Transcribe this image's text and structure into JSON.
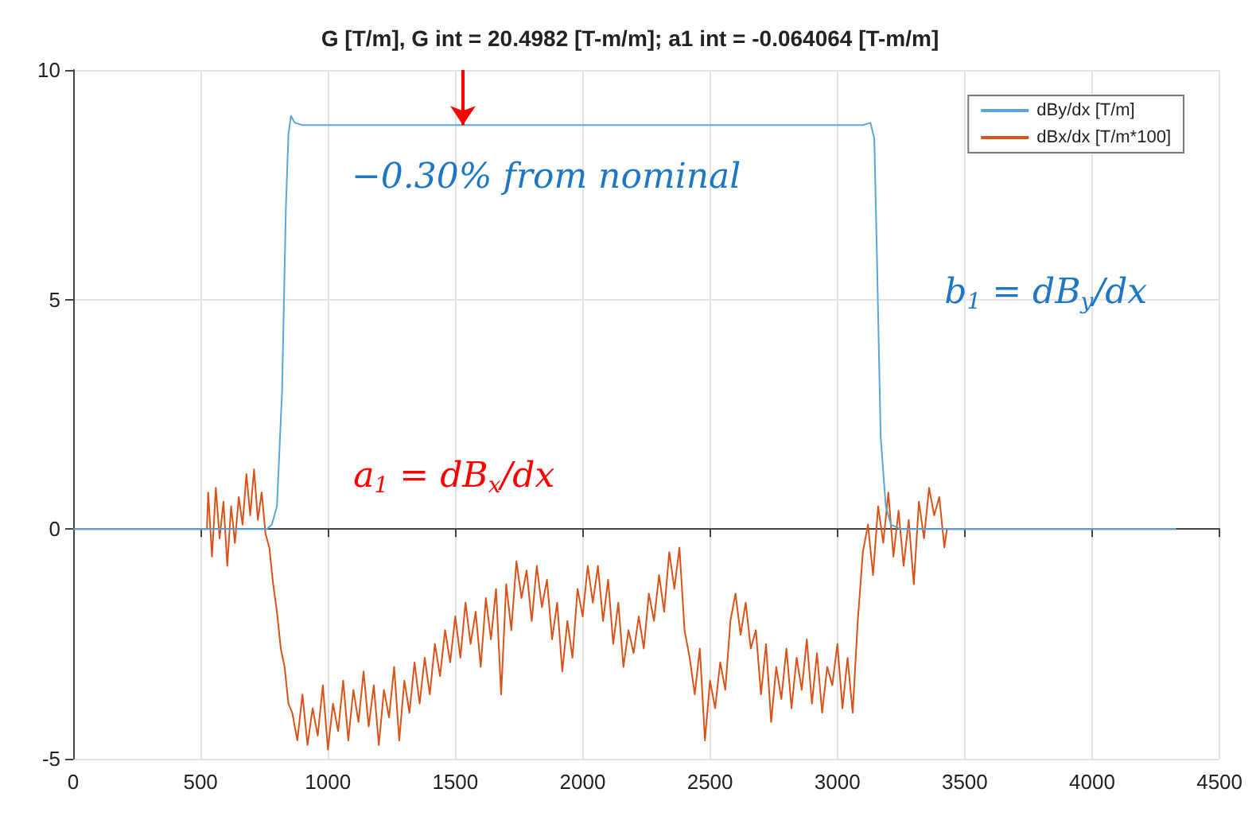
{
  "chart_data": {
    "type": "line",
    "title": "G [T/m], G int = 20.4982 [T-m/m]; a1 int = -0.064064 [T-m/m]",
    "xlim": [
      0,
      4500
    ],
    "xticks": [
      0,
      500,
      1000,
      1500,
      2000,
      2500,
      3000,
      3500,
      4000,
      4500
    ],
    "ylim": [
      -5,
      10
    ],
    "yticks": [
      -5,
      0,
      5,
      10
    ],
    "grid": true,
    "legend": "top right",
    "marker": "none",
    "line_style": "solid",
    "annotations": [
      {
        "text": "−0.30% from nominal",
        "x": 1530,
        "y": 8.8
      },
      "b$_{1}$ = dB$_{y}$/dx",
      "a$_{1}$ = dB$_{x}$/dx"
    ],
    "series": [
      {
        "name": "dBy/dx [T/m]",
        "color": "#5aa6dc",
        "x": [
          0,
          760,
          780,
          800,
          820,
          835,
          845,
          855,
          870,
          900,
          1500,
          2000,
          2500,
          3000,
          3100,
          3130,
          3145,
          3155,
          3170,
          3190,
          3210,
          3250,
          4330
        ],
        "values": [
          0,
          0,
          0.1,
          0.5,
          3,
          7,
          8.6,
          9.0,
          8.85,
          8.8,
          8.8,
          8.8,
          8.8,
          8.8,
          8.8,
          8.85,
          8.5,
          6,
          2,
          0.5,
          0.1,
          0,
          0
        ]
      },
      {
        "name": "dBx/dx [T/m*100]",
        "color": "#d95319",
        "x": [
          0,
          525,
          530,
          545,
          560,
          575,
          590,
          605,
          620,
          635,
          650,
          665,
          680,
          695,
          710,
          725,
          740,
          755,
          770,
          785,
          800,
          815,
          830,
          845,
          860,
          880,
          900,
          920,
          940,
          960,
          980,
          1000,
          1020,
          1040,
          1060,
          1080,
          1100,
          1120,
          1140,
          1160,
          1180,
          1200,
          1220,
          1240,
          1260,
          1280,
          1300,
          1320,
          1340,
          1360,
          1380,
          1400,
          1420,
          1440,
          1460,
          1480,
          1500,
          1520,
          1540,
          1560,
          1580,
          1600,
          1620,
          1640,
          1660,
          1680,
          1700,
          1720,
          1740,
          1760,
          1780,
          1800,
          1820,
          1840,
          1860,
          1880,
          1900,
          1920,
          1940,
          1960,
          1980,
          2000,
          2020,
          2040,
          2060,
          2080,
          2100,
          2120,
          2140,
          2160,
          2180,
          2200,
          2220,
          2240,
          2260,
          2280,
          2300,
          2320,
          2340,
          2360,
          2380,
          2400,
          2420,
          2440,
          2460,
          2480,
          2500,
          2520,
          2540,
          2560,
          2580,
          2600,
          2620,
          2640,
          2660,
          2680,
          2700,
          2720,
          2740,
          2760,
          2780,
          2800,
          2820,
          2840,
          2860,
          2880,
          2900,
          2920,
          2940,
          2960,
          2980,
          3000,
          3020,
          3040,
          3060,
          3080,
          3100,
          3120,
          3140,
          3160,
          3180,
          3200,
          3220,
          3240,
          3260,
          3280,
          3300,
          3320,
          3340,
          3360,
          3380,
          3400,
          3420,
          3430,
          4330
        ],
        "values": [
          0,
          0,
          0.8,
          -0.6,
          0.9,
          -0.2,
          0.6,
          -0.8,
          0.5,
          -0.3,
          0.7,
          0.1,
          1.2,
          0.3,
          1.3,
          0.2,
          0.8,
          -0.1,
          -0.4,
          -1.2,
          -1.8,
          -2.6,
          -3.0,
          -3.8,
          -4.0,
          -4.6,
          -3.6,
          -4.7,
          -3.9,
          -4.5,
          -3.4,
          -4.8,
          -3.8,
          -4.4,
          -3.3,
          -4.6,
          -3.5,
          -4.2,
          -3.1,
          -4.3,
          -3.4,
          -4.7,
          -3.5,
          -4.1,
          -3.0,
          -4.6,
          -3.3,
          -4.0,
          -2.9,
          -3.8,
          -2.8,
          -3.6,
          -2.5,
          -3.2,
          -2.2,
          -2.9,
          -1.9,
          -2.8,
          -1.6,
          -2.5,
          -1.8,
          -3.0,
          -1.5,
          -2.4,
          -1.3,
          -3.6,
          -1.2,
          -2.2,
          -0.7,
          -1.5,
          -0.9,
          -2.0,
          -0.8,
          -1.7,
          -1.1,
          -2.4,
          -1.6,
          -3.1,
          -2.0,
          -2.8,
          -1.3,
          -1.9,
          -0.8,
          -1.6,
          -0.8,
          -2.0,
          -1.1,
          -2.5,
          -1.6,
          -3.0,
          -2.2,
          -2.7,
          -1.9,
          -2.6,
          -1.4,
          -2.0,
          -1.0,
          -1.8,
          -0.5,
          -1.3,
          -0.4,
          -2.2,
          -2.8,
          -3.6,
          -2.6,
          -4.6,
          -3.3,
          -3.9,
          -2.9,
          -3.5,
          -2.0,
          -1.4,
          -2.3,
          -1.6,
          -2.6,
          -2.2,
          -3.6,
          -2.5,
          -4.2,
          -3.0,
          -3.7,
          -2.6,
          -3.9,
          -2.8,
          -3.5,
          -2.4,
          -3.8,
          -2.7,
          -4.0,
          -3.0,
          -3.4,
          -2.5,
          -3.9,
          -2.8,
          -4.0,
          -2.0,
          -0.5,
          0.1,
          -1.0,
          0.5,
          -0.3,
          0.8,
          -0.6,
          0.4,
          -0.8,
          0.2,
          -1.2,
          0.6,
          -0.2,
          0.9,
          0.3,
          0.7,
          -0.4,
          0,
          0
        ]
      }
    ]
  }
}
